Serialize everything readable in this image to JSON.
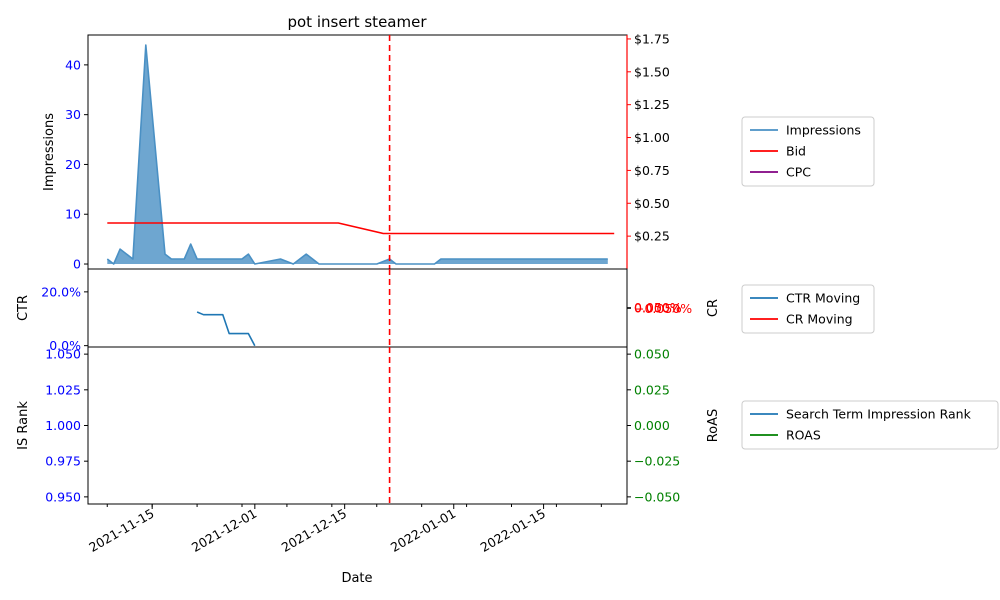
{
  "chart_data": {
    "title": "pot insert steamer",
    "xlabel": "Date",
    "x_ticks": [
      "2021-11-15",
      "2021-12-01",
      "2021-12-15",
      "2022-01-01",
      "2022-01-15"
    ],
    "vline_date": "2021-12-22",
    "panels": [
      {
        "type": "area",
        "ylabel_left": "Impressions",
        "ylabel_right": "",
        "ylim_left": [
          -1,
          46
        ],
        "ylim_right": [
          0.0,
          1.78
        ],
        "y_ticks_left": [
          "0",
          "10",
          "20",
          "30",
          "40"
        ],
        "y_ticks_right": [
          "$0.25",
          "$0.50",
          "$0.75",
          "$1.00",
          "$1.25",
          "$1.50",
          "$1.75"
        ],
        "series": [
          {
            "name": "Impressions",
            "color": "#4a90c4",
            "x": [
              "2021-11-08",
              "2021-11-09",
              "2021-11-10",
              "2021-11-12",
              "2021-11-14",
              "2021-11-16",
              "2021-11-17",
              "2021-11-18",
              "2021-11-19",
              "2021-11-20",
              "2021-11-21",
              "2021-11-22",
              "2021-11-23",
              "2021-11-25",
              "2021-11-27",
              "2021-11-29",
              "2021-11-30",
              "2021-12-01",
              "2021-12-03",
              "2021-12-05",
              "2021-12-07",
              "2021-12-09",
              "2021-12-10",
              "2021-12-11",
              "2021-12-12",
              "2021-12-15",
              "2021-12-20",
              "2021-12-22",
              "2021-12-23",
              "2021-12-24",
              "2021-12-27",
              "2021-12-29",
              "2021-12-30",
              "2022-01-05",
              "2022-01-15",
              "2022-01-25"
            ],
            "y": [
              1,
              0,
              3,
              1,
              44,
              16,
              2,
              1,
              1,
              1,
              4,
              1,
              1,
              1,
              1,
              1,
              2,
              0,
              0.5,
              1,
              0,
              2,
              1,
              0,
              0,
              0,
              0,
              1,
              0,
              0,
              0,
              0,
              1,
              1,
              1,
              1
            ]
          },
          {
            "name": "Bid",
            "color": "#ff0000",
            "x": [
              "2021-11-08",
              "2021-12-14",
              "2021-12-21",
              "2022-01-26"
            ],
            "y": [
              0.35,
              0.35,
              0.27,
              0.27
            ]
          },
          {
            "name": "CPC",
            "color": "#800080",
            "x": [],
            "y": []
          }
        ]
      },
      {
        "type": "line",
        "ylabel_left": "CTR",
        "ylabel_right": "CR",
        "ylim_left": [
          -0.005,
          0.285
        ],
        "ylim_right": [
          -0.065,
          0.065
        ],
        "y_ticks_left": [
          "0.0%",
          "20.0%"
        ],
        "y_ticks_right": [
          "−0.050%",
          "0.000%",
          "0.050%"
        ],
        "series": [
          {
            "name": "CTR Moving",
            "color": "#1f77b4",
            "x": [
              "2021-11-22",
              "2021-11-23",
              "2021-11-25",
              "2021-11-26",
              "2021-11-27",
              "2021-11-28",
              "2021-11-30",
              "2021-12-01"
            ],
            "y": [
              0.125,
              0.115,
              0.115,
              0.115,
              0.045,
              0.045,
              0.045,
              0.0
            ]
          },
          {
            "name": "CR Moving",
            "color": "#ff0000",
            "x": [],
            "y": []
          }
        ]
      },
      {
        "type": "line",
        "ylabel_left": "IS Rank",
        "ylabel_right": "RoAS",
        "ylim_left": [
          0.945,
          1.055
        ],
        "ylim_right": [
          -0.055,
          0.055
        ],
        "y_ticks_left": [
          "0.950",
          "0.975",
          "1.000",
          "1.025",
          "1.050"
        ],
        "y_ticks_right": [
          "−0.050",
          "−0.025",
          "0.000",
          "0.025",
          "0.050"
        ],
        "series": [
          {
            "name": "Search Term Impression Rank",
            "color": "#1f77b4",
            "x": [],
            "y": []
          },
          {
            "name": "ROAS",
            "color": "#008000",
            "x": [],
            "y": []
          }
        ]
      }
    ]
  }
}
